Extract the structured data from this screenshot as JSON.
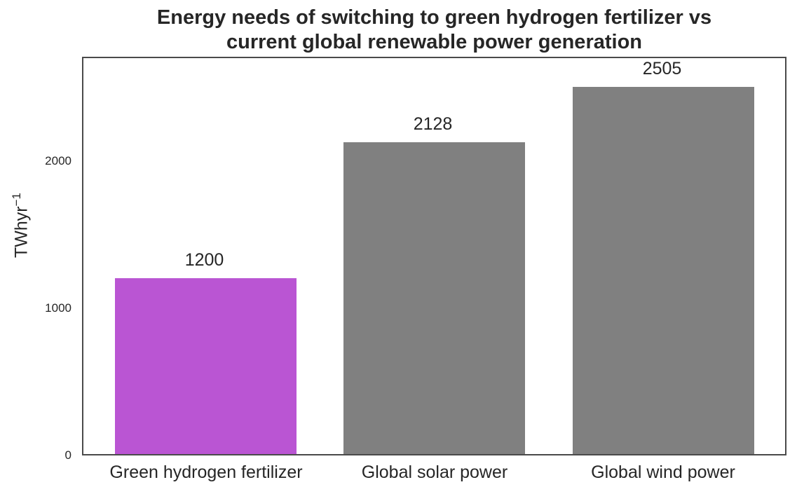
{
  "chart_data": {
    "type": "bar",
    "title": "Energy needs of switching to green hydrogen fertilizer vs current global renewable power generation",
    "title_lines": [
      "Energy needs of switching to green hydrogen fertilizer vs",
      "current global renewable power generation"
    ],
    "categories": [
      "Green hydrogen fertilizer",
      "Global solar power",
      "Global wind power"
    ],
    "values": [
      1200,
      2128,
      2505
    ],
    "value_labels": [
      "1200",
      "2128",
      "2505"
    ],
    "colors": [
      "#ba55d3",
      "#808080",
      "#808080"
    ],
    "xlabel": "",
    "ylabel": "TWhyr",
    "ylabel_superscript": "−1",
    "yticks": [
      "0",
      "1000",
      "2000"
    ],
    "ylim": [
      0,
      2710
    ],
    "grid": false,
    "legend": null
  }
}
